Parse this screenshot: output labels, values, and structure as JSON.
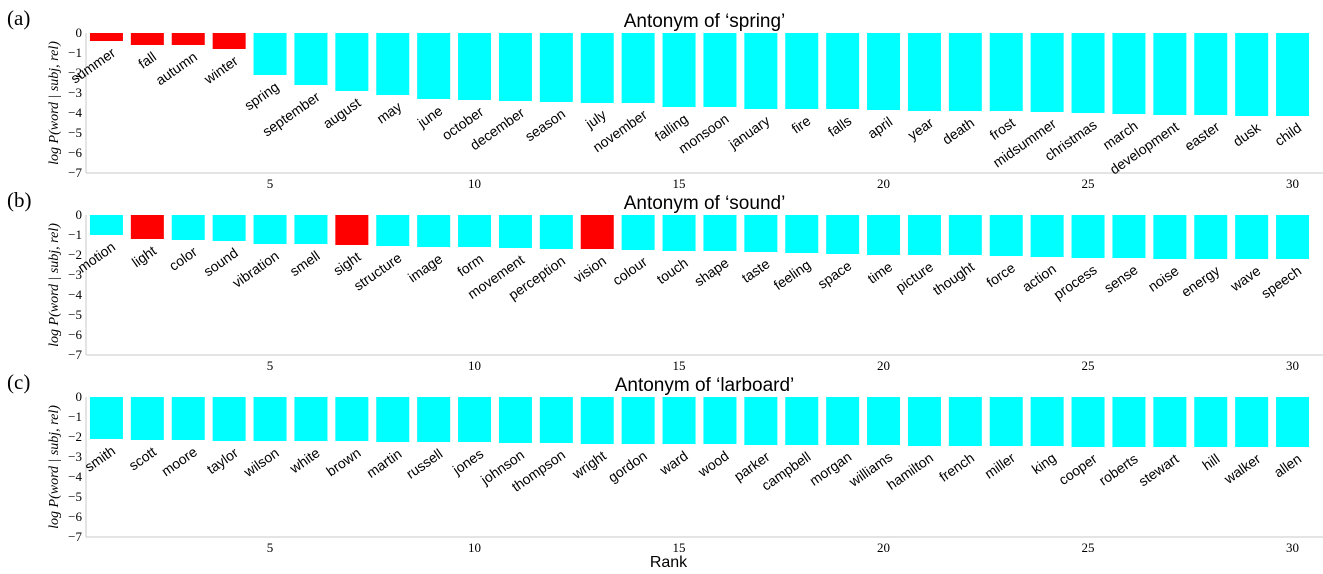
{
  "colors": {
    "highlight": "#ff0000",
    "default": "#00ffff",
    "axis": "#c8c8c8"
  },
  "chart_data": [
    {
      "type": "bar",
      "panel_label": "(a)",
      "title": "Antonym of ‘spring’",
      "ylabel": "log P(word | subj, rel)",
      "xlabel": "",
      "ylim": [
        -7,
        0
      ],
      "yticks": [
        0,
        -1,
        -2,
        -3,
        -4,
        -5,
        -6,
        -7
      ],
      "xticks": [
        5,
        10,
        15,
        20,
        25,
        30
      ],
      "categories": [
        "summer",
        "fall",
        "autumn",
        "winter",
        "spring",
        "september",
        "august",
        "may",
        "june",
        "october",
        "december",
        "season",
        "july",
        "november",
        "falling",
        "monsoon",
        "january",
        "fire",
        "falls",
        "april",
        "year",
        "death",
        "frost",
        "midsummer",
        "christmas",
        "march",
        "development",
        "easter",
        "dusk",
        "child"
      ],
      "values": [
        -0.4,
        -0.6,
        -0.6,
        -0.8,
        -2.1,
        -2.6,
        -2.9,
        -3.1,
        -3.3,
        -3.35,
        -3.4,
        -3.45,
        -3.5,
        -3.5,
        -3.7,
        -3.7,
        -3.8,
        -3.8,
        -3.8,
        -3.85,
        -3.9,
        -3.9,
        -3.9,
        -3.95,
        -4.0,
        -4.05,
        -4.1,
        -4.1,
        -4.15,
        -4.15
      ],
      "highlighted": [
        0,
        1,
        2,
        3
      ]
    },
    {
      "type": "bar",
      "panel_label": "(b)",
      "title": "Antonym of ‘sound’",
      "ylabel": "log P(word | subj, rel)",
      "xlabel": "",
      "ylim": [
        -7,
        0
      ],
      "yticks": [
        0,
        -1,
        -2,
        -3,
        -4,
        -5,
        -6,
        -7
      ],
      "xticks": [
        5,
        10,
        15,
        20,
        25,
        30
      ],
      "categories": [
        "motion",
        "light",
        "color",
        "sound",
        "vibration",
        "smell",
        "sight",
        "structure",
        "image",
        "form",
        "movement",
        "perception",
        "vision",
        "colour",
        "touch",
        "shape",
        "taste",
        "feeling",
        "space",
        "time",
        "picture",
        "thought",
        "force",
        "action",
        "process",
        "sense",
        "noise",
        "energy",
        "wave",
        "speech"
      ],
      "values": [
        -1.0,
        -1.2,
        -1.25,
        -1.3,
        -1.45,
        -1.45,
        -1.5,
        -1.55,
        -1.6,
        -1.6,
        -1.65,
        -1.7,
        -1.7,
        -1.75,
        -1.8,
        -1.8,
        -1.85,
        -1.9,
        -1.95,
        -2.0,
        -2.0,
        -2.0,
        -2.05,
        -2.1,
        -2.15,
        -2.15,
        -2.2,
        -2.2,
        -2.2,
        -2.2
      ],
      "highlighted": [
        1,
        6,
        12
      ]
    },
    {
      "type": "bar",
      "panel_label": "(c)",
      "title": "Antonym of ‘larboard’",
      "ylabel": "log P(word | subj, rel)",
      "xlabel": "Rank",
      "ylim": [
        -7,
        0
      ],
      "yticks": [
        0,
        -1,
        -2,
        -3,
        -4,
        -5,
        -6,
        -7
      ],
      "xticks": [
        5,
        10,
        15,
        20,
        25,
        30
      ],
      "categories": [
        "smith",
        "scott",
        "moore",
        "taylor",
        "wilson",
        "white",
        "brown",
        "martin",
        "russell",
        "jones",
        "johnson",
        "thompson",
        "wright",
        "gordon",
        "ward",
        "wood",
        "parker",
        "campbell",
        "morgan",
        "williams",
        "hamilton",
        "french",
        "miller",
        "king",
        "cooper",
        "roberts",
        "stewart",
        "hill",
        "walker",
        "allen"
      ],
      "values": [
        -2.1,
        -2.15,
        -2.15,
        -2.2,
        -2.2,
        -2.2,
        -2.2,
        -2.25,
        -2.25,
        -2.25,
        -2.3,
        -2.3,
        -2.35,
        -2.35,
        -2.35,
        -2.35,
        -2.4,
        -2.4,
        -2.4,
        -2.4,
        -2.45,
        -2.45,
        -2.45,
        -2.45,
        -2.5,
        -2.5,
        -2.5,
        -2.5,
        -2.5,
        -2.5
      ],
      "highlighted": []
    }
  ]
}
